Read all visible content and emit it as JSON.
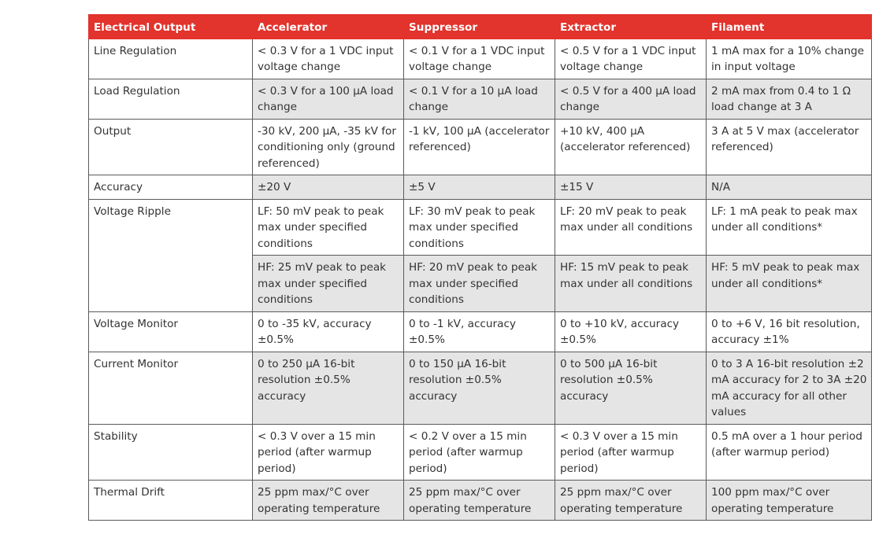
{
  "table": {
    "header": [
      "Electrical Output",
      "Accelerator",
      "Suppressor",
      "Extractor",
      "Filament"
    ],
    "rows": [
      {
        "label": "Line Regulation",
        "values": [
          [
            "< 0.3 V for a 1 VDC input voltage change",
            "< 0.1 V for a 1 VDC input voltage change",
            "< 0.5 V for a 1 VDC input voltage change",
            "1 mA max for a 10% change in input voltage"
          ]
        ]
      },
      {
        "label": "Load Regulation",
        "values": [
          [
            "< 0.3 V for a 100 µA load change",
            "< 0.1 V for a 10 µA load change",
            "< 0.5 V for a 400 µA load change",
            "2 mA max from 0.4 to 1 Ω load change at 3 A"
          ]
        ]
      },
      {
        "label": "Output",
        "values": [
          [
            "-30 kV, 200 µA, -35 kV for conditioning only (ground referenced)",
            "-1 kV, 100 µA (accelerator referenced)",
            "+10 kV, 400 µA (accelerator referenced)",
            "3 A at 5 V max (accelerator referenced)"
          ]
        ]
      },
      {
        "label": "Accuracy",
        "values": [
          [
            "±20 V",
            "±5 V",
            "±15 V",
            "N/A"
          ]
        ]
      },
      {
        "label": "Voltage Ripple",
        "values": [
          [
            "LF: 50 mV peak to peak max under specified conditions",
            "LF: 30 mV peak to peak max under specified conditions",
            "LF: 20 mV peak to peak max under all conditions",
            "LF: 1 mA peak to peak max under all conditions*"
          ],
          [
            "HF: 25 mV peak to peak max under specified conditions",
            "HF: 20 mV peak to peak max under specified conditions",
            "HF: 15 mV peak to peak max under all conditions",
            "HF: 5 mV peak to peak max under all conditions*"
          ]
        ]
      },
      {
        "label": "Voltage Monitor",
        "values": [
          [
            "0 to -35 kV, accuracy ±0.5%",
            "0 to -1 kV, accuracy ±0.5%",
            "0 to +10 kV, accuracy ±0.5%",
            "0 to +6 V, 16 bit resolution, accuracy ±1%"
          ]
        ]
      },
      {
        "label": "Current Monitor",
        "values": [
          [
            "0 to 250 µA 16-bit resolution ±0.5% accuracy",
            "0 to 150 µA 16-bit resolution ±0.5% accuracy",
            "0 to 500 µA 16-bit resolution ±0.5% accuracy",
            "0 to 3 A 16-bit resolution ±2 mA accuracy for 2 to 3A ±20 mA accuracy for all other values"
          ]
        ]
      },
      {
        "label": "Stability",
        "values": [
          [
            "< 0.3 V over a 15 min period (after warmup period)",
            "< 0.2 V over a 15 min period (after warmup period)",
            "< 0.3 V over a 15 min period (after warmup period)",
            "0.5 mA over a 1 hour period (after warmup period)"
          ]
        ]
      },
      {
        "label": "Thermal Drift",
        "values": [
          [
            "25 ppm max/°C over operating temperature",
            "25 ppm max/°C over operating temperature",
            "25 ppm max/°C over operating temperature",
            "100 ppm max/°C over operating temperature"
          ]
        ]
      }
    ]
  }
}
